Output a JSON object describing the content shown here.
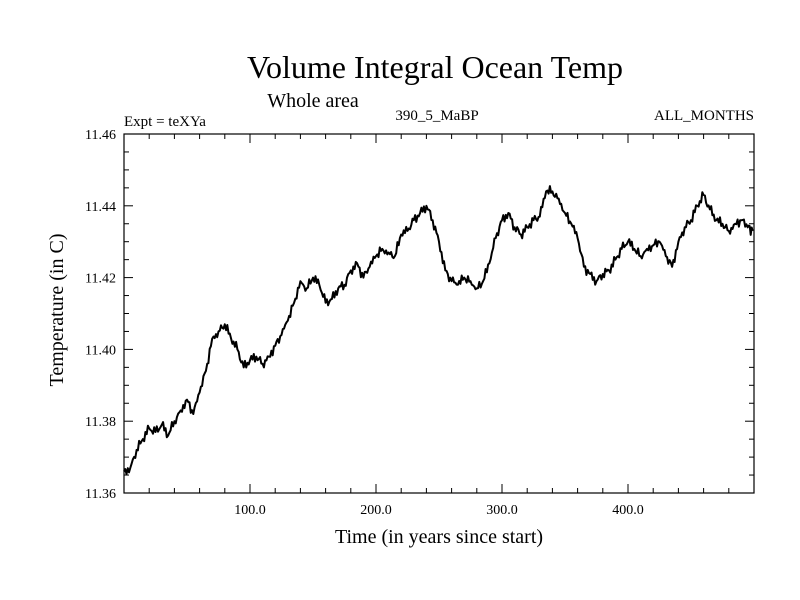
{
  "chart_data": {
    "type": "line",
    "title": "Volume Integral Ocean Temp",
    "subtitle": "Whole area",
    "annotations": {
      "left": "Expt = teXYa",
      "center": "390_5_MaBP",
      "right": "ALL_MONTHS"
    },
    "xlabel": "Time (in years since start)",
    "ylabel": "Temperature (in C)",
    "xlim": [
      0,
      500
    ],
    "ylim": [
      11.36,
      11.46
    ],
    "x_ticks": [
      100,
      200,
      300,
      400
    ],
    "x_tick_labels": [
      "100.0",
      "200.0",
      "300.0",
      "400.0"
    ],
    "y_ticks": [
      11.36,
      11.38,
      11.4,
      11.42,
      11.44,
      11.46
    ],
    "y_tick_labels": [
      "11.36",
      "11.38",
      "11.40",
      "11.42",
      "11.44",
      "11.46"
    ],
    "grid": false,
    "line_color": "#000000",
    "series": [
      {
        "x": [
          0,
          5,
          10,
          15,
          20,
          25,
          30,
          35,
          40,
          45,
          50,
          55,
          60,
          65,
          70,
          75,
          80,
          85,
          90,
          95,
          100,
          105,
          110,
          115,
          120,
          125,
          130,
          135,
          140,
          145,
          150,
          155,
          160,
          165,
          170,
          175,
          180,
          185,
          190,
          195,
          200,
          205,
          210,
          215,
          220,
          225,
          230,
          235,
          240,
          245,
          250,
          255,
          260,
          265,
          270,
          275,
          280,
          285,
          290,
          295,
          300,
          305,
          310,
          315,
          320,
          325,
          330,
          335,
          340,
          345,
          350,
          355,
          360,
          365,
          370,
          375,
          380,
          385,
          390,
          395,
          400,
          405,
          410,
          415,
          420,
          425,
          430,
          435,
          440,
          445,
          450,
          455,
          460,
          465,
          470,
          475,
          480,
          485,
          490,
          495,
          499
        ],
        "values": [
          11.366,
          11.367,
          11.372,
          11.375,
          11.378,
          11.377,
          11.379,
          11.376,
          11.38,
          11.383,
          11.386,
          11.382,
          11.388,
          11.394,
          11.403,
          11.405,
          11.407,
          11.403,
          11.4,
          11.395,
          11.397,
          11.398,
          11.396,
          11.398,
          11.401,
          11.404,
          11.408,
          11.413,
          11.419,
          11.417,
          11.42,
          11.418,
          11.413,
          11.414,
          11.417,
          11.418,
          11.422,
          11.424,
          11.42,
          11.423,
          11.426,
          11.428,
          11.427,
          11.426,
          11.432,
          11.433,
          11.436,
          11.438,
          11.44,
          11.436,
          11.43,
          11.422,
          11.419,
          11.418,
          11.42,
          11.419,
          11.417,
          11.419,
          11.424,
          11.431,
          11.436,
          11.438,
          11.434,
          11.432,
          11.434,
          11.436,
          11.437,
          11.444,
          11.444,
          11.442,
          11.438,
          11.435,
          11.431,
          11.423,
          11.421,
          11.419,
          11.421,
          11.422,
          11.425,
          11.428,
          11.43,
          11.428,
          11.426,
          11.428,
          11.429,
          11.43,
          11.426,
          11.423,
          11.43,
          11.434,
          11.436,
          11.44,
          11.443,
          11.439,
          11.436,
          11.435,
          11.433,
          11.435,
          11.436,
          11.434,
          11.433
        ]
      }
    ]
  }
}
